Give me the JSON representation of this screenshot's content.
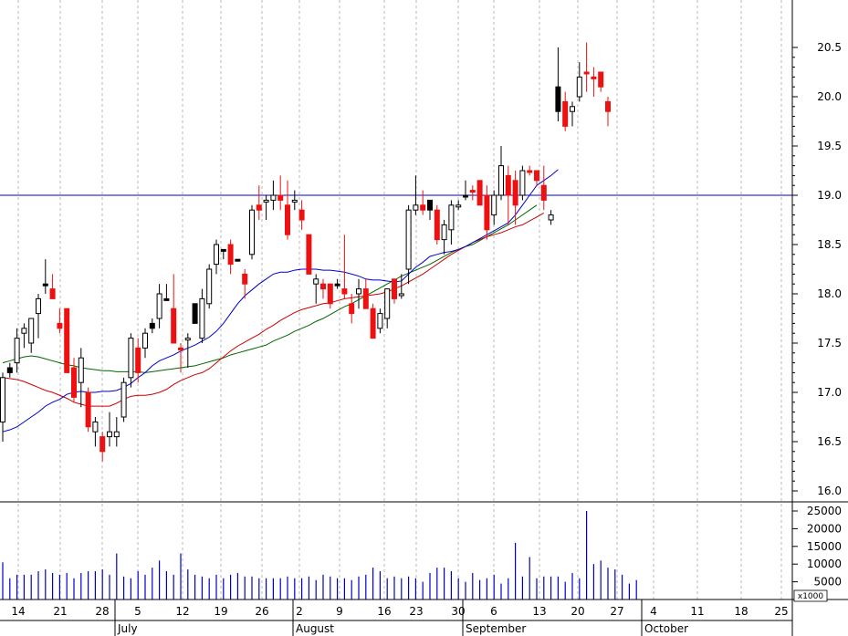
{
  "chart_data": {
    "type": "candlestick",
    "title": "",
    "price_axis": {
      "ylim": [
        15.9,
        21.0
      ],
      "ticks": [
        "16.0",
        "16.5",
        "17.0",
        "17.5",
        "18.0",
        "18.5",
        "19.0",
        "19.5",
        "20.0",
        "20.5"
      ]
    },
    "volume_axis": {
      "ylim": [
        0,
        27000
      ],
      "ticks": [
        "5000",
        "10000",
        "15000",
        "20000",
        "25000"
      ],
      "multiplier_label": "x1000"
    },
    "x_axis": {
      "day_labels": [
        "14",
        "21",
        "28",
        "5",
        "12",
        "19",
        "26",
        "2",
        "9",
        "16",
        "23",
        "30",
        "6",
        "13",
        "20",
        "27",
        "4",
        "11",
        "18",
        "25"
      ],
      "month_labels": [
        "July",
        "August",
        "September",
        "October"
      ],
      "grid": "dashed-vertical"
    },
    "horizontal_line": {
      "value": 19.0,
      "color": "#0000cc"
    },
    "colors": {
      "up": "#ffffff",
      "down": "#ee1111",
      "black_candle": "#000000",
      "ma_short": "#0000cc",
      "ma_mid": "#cc0000",
      "ma_long": "#006600",
      "volume": "#0000cc"
    },
    "candles": [
      {
        "o": 16.7,
        "h": 17.2,
        "l": 16.5,
        "c": 17.15,
        "color": "up"
      },
      {
        "o": 17.2,
        "h": 17.3,
        "l": 17.15,
        "c": 17.25,
        "color": "black"
      },
      {
        "o": 17.3,
        "h": 17.65,
        "l": 17.2,
        "c": 17.55,
        "color": "up"
      },
      {
        "o": 17.6,
        "h": 17.7,
        "l": 17.45,
        "c": 17.65,
        "color": "up"
      },
      {
        "o": 17.5,
        "h": 17.75,
        "l": 17.4,
        "c": 17.75,
        "color": "up"
      },
      {
        "o": 17.8,
        "h": 18.0,
        "l": 17.55,
        "c": 17.95,
        "color": "up"
      },
      {
        "o": 18.1,
        "h": 18.35,
        "l": 18.0,
        "c": 18.1,
        "color": "black"
      },
      {
        "o": 18.05,
        "h": 18.2,
        "l": 17.95,
        "c": 17.95,
        "color": "down"
      },
      {
        "o": 17.7,
        "h": 17.85,
        "l": 17.6,
        "c": 17.65,
        "color": "down"
      },
      {
        "o": 17.85,
        "h": 17.85,
        "l": 17.2,
        "c": 17.2,
        "color": "down"
      },
      {
        "o": 17.25,
        "h": 17.35,
        "l": 16.9,
        "c": 16.95,
        "color": "down"
      },
      {
        "o": 17.1,
        "h": 17.45,
        "l": 16.85,
        "c": 17.35,
        "color": "up"
      },
      {
        "o": 17.0,
        "h": 17.05,
        "l": 16.6,
        "c": 16.65,
        "color": "down"
      },
      {
        "o": 16.6,
        "h": 16.75,
        "l": 16.45,
        "c": 16.7,
        "color": "up"
      },
      {
        "o": 16.55,
        "h": 16.6,
        "l": 16.3,
        "c": 16.4,
        "color": "down"
      },
      {
        "o": 16.55,
        "h": 16.8,
        "l": 16.45,
        "c": 16.6,
        "color": "up"
      },
      {
        "o": 16.55,
        "h": 16.75,
        "l": 16.45,
        "c": 16.6,
        "color": "up"
      },
      {
        "o": 16.75,
        "h": 17.15,
        "l": 16.7,
        "c": 17.1,
        "color": "up"
      },
      {
        "o": 17.15,
        "h": 17.6,
        "l": 17.05,
        "c": 17.55,
        "color": "up"
      },
      {
        "o": 17.45,
        "h": 17.55,
        "l": 17.1,
        "c": 17.2,
        "color": "down"
      },
      {
        "o": 17.45,
        "h": 17.65,
        "l": 17.35,
        "c": 17.6,
        "color": "up"
      },
      {
        "o": 17.7,
        "h": 17.75,
        "l": 17.6,
        "c": 17.65,
        "color": "black"
      },
      {
        "o": 17.75,
        "h": 18.1,
        "l": 17.65,
        "c": 18.0,
        "color": "up"
      },
      {
        "o": 17.95,
        "h": 18.1,
        "l": 17.95,
        "c": 17.95,
        "color": "black"
      },
      {
        "o": 17.85,
        "h": 18.2,
        "l": 17.5,
        "c": 17.5,
        "color": "down"
      },
      {
        "o": 17.45,
        "h": 17.5,
        "l": 17.2,
        "c": 17.45,
        "color": "down"
      },
      {
        "o": 17.55,
        "h": 17.6,
        "l": 17.25,
        "c": 17.55,
        "color": "up"
      },
      {
        "o": 17.9,
        "h": 17.9,
        "l": 17.7,
        "c": 17.7,
        "color": "black"
      },
      {
        "o": 17.55,
        "h": 18.05,
        "l": 17.5,
        "c": 17.95,
        "color": "up"
      },
      {
        "o": 17.9,
        "h": 18.3,
        "l": 17.85,
        "c": 18.25,
        "color": "up"
      },
      {
        "o": 18.3,
        "h": 18.55,
        "l": 18.2,
        "c": 18.5,
        "color": "up"
      },
      {
        "o": 18.45,
        "h": 18.45,
        "l": 18.35,
        "c": 18.45,
        "color": "black"
      },
      {
        "o": 18.5,
        "h": 18.55,
        "l": 18.2,
        "c": 18.3,
        "color": "down"
      },
      {
        "o": 18.35,
        "h": 18.35,
        "l": 18.35,
        "c": 18.35,
        "color": "black"
      },
      {
        "o": 18.2,
        "h": 18.25,
        "l": 17.95,
        "c": 18.1,
        "color": "down"
      },
      {
        "o": 18.4,
        "h": 18.9,
        "l": 18.35,
        "c": 18.85,
        "color": "up"
      },
      {
        "o": 18.85,
        "h": 19.1,
        "l": 18.75,
        "c": 18.9,
        "color": "down"
      },
      {
        "o": 18.95,
        "h": 19.0,
        "l": 18.75,
        "c": 18.95,
        "color": "up"
      },
      {
        "o": 18.95,
        "h": 19.15,
        "l": 18.85,
        "c": 19.0,
        "color": "up"
      },
      {
        "o": 19.0,
        "h": 19.2,
        "l": 18.85,
        "c": 18.95,
        "color": "down"
      },
      {
        "o": 18.9,
        "h": 19.15,
        "l": 18.55,
        "c": 18.6,
        "color": "down"
      },
      {
        "o": 18.95,
        "h": 19.05,
        "l": 18.85,
        "c": 18.95,
        "color": "up"
      },
      {
        "o": 18.85,
        "h": 18.95,
        "l": 18.65,
        "c": 18.75,
        "color": "down"
      },
      {
        "o": 18.6,
        "h": 18.6,
        "l": 18.2,
        "c": 18.2,
        "color": "down"
      },
      {
        "o": 18.15,
        "h": 18.2,
        "l": 17.9,
        "c": 18.1,
        "color": "up"
      },
      {
        "o": 18.1,
        "h": 18.15,
        "l": 17.95,
        "c": 18.05,
        "color": "down"
      },
      {
        "o": 18.1,
        "h": 18.1,
        "l": 17.85,
        "c": 17.9,
        "color": "down"
      },
      {
        "o": 18.1,
        "h": 18.15,
        "l": 18.05,
        "c": 18.1,
        "color": "black"
      },
      {
        "o": 18.05,
        "h": 18.6,
        "l": 17.95,
        "c": 18.0,
        "color": "down"
      },
      {
        "o": 17.9,
        "h": 18.0,
        "l": 17.7,
        "c": 17.8,
        "color": "down"
      },
      {
        "o": 18.05,
        "h": 18.15,
        "l": 17.85,
        "c": 18.0,
        "color": "up"
      },
      {
        "o": 18.05,
        "h": 18.15,
        "l": 17.85,
        "c": 17.85,
        "color": "down"
      },
      {
        "o": 17.85,
        "h": 17.9,
        "l": 17.55,
        "c": 17.55,
        "color": "down"
      },
      {
        "o": 17.65,
        "h": 17.85,
        "l": 17.6,
        "c": 17.8,
        "color": "up"
      },
      {
        "o": 17.75,
        "h": 18.05,
        "l": 17.65,
        "c": 18.05,
        "color": "up"
      },
      {
        "o": 18.15,
        "h": 18.15,
        "l": 17.9,
        "c": 17.95,
        "color": "down"
      },
      {
        "o": 18.0,
        "h": 18.2,
        "l": 17.95,
        "c": 18.0,
        "color": "up"
      },
      {
        "o": 18.25,
        "h": 18.9,
        "l": 18.1,
        "c": 18.85,
        "color": "up"
      },
      {
        "o": 18.85,
        "h": 19.2,
        "l": 18.8,
        "c": 18.9,
        "color": "up"
      },
      {
        "o": 18.9,
        "h": 19.05,
        "l": 18.8,
        "c": 18.85,
        "color": "down"
      },
      {
        "o": 18.85,
        "h": 18.95,
        "l": 18.75,
        "c": 18.95,
        "color": "black"
      },
      {
        "o": 18.85,
        "h": 18.9,
        "l": 18.5,
        "c": 18.55,
        "color": "down"
      },
      {
        "o": 18.55,
        "h": 18.75,
        "l": 18.4,
        "c": 18.7,
        "color": "up"
      },
      {
        "o": 18.65,
        "h": 18.95,
        "l": 18.5,
        "c": 18.9,
        "color": "up"
      },
      {
        "o": 18.9,
        "h": 18.95,
        "l": 18.85,
        "c": 18.9,
        "color": "up"
      },
      {
        "o": 19.0,
        "h": 19.15,
        "l": 18.95,
        "c": 19.0,
        "color": "black"
      },
      {
        "o": 19.05,
        "h": 19.1,
        "l": 18.95,
        "c": 19.05,
        "color": "down"
      },
      {
        "o": 19.15,
        "h": 19.15,
        "l": 18.9,
        "c": 18.9,
        "color": "down"
      },
      {
        "o": 19.0,
        "h": 19.1,
        "l": 18.55,
        "c": 18.65,
        "color": "down"
      },
      {
        "o": 18.8,
        "h": 19.05,
        "l": 18.7,
        "c": 19.0,
        "color": "up"
      },
      {
        "o": 19.0,
        "h": 19.5,
        "l": 18.95,
        "c": 19.3,
        "color": "up"
      },
      {
        "o": 19.2,
        "h": 19.3,
        "l": 18.7,
        "c": 19.0,
        "color": "down"
      },
      {
        "o": 19.15,
        "h": 19.25,
        "l": 18.7,
        "c": 18.9,
        "color": "down"
      },
      {
        "o": 19.0,
        "h": 19.3,
        "l": 18.95,
        "c": 19.25,
        "color": "up"
      },
      {
        "o": 19.25,
        "h": 19.3,
        "l": 19.2,
        "c": 19.25,
        "color": "down"
      },
      {
        "o": 19.25,
        "h": 19.25,
        "l": 19.1,
        "c": 19.15,
        "color": "down"
      },
      {
        "o": 19.1,
        "h": 19.3,
        "l": 18.85,
        "c": 18.95,
        "color": "down"
      },
      {
        "o": 18.8,
        "h": 18.85,
        "l": 18.7,
        "c": 18.75,
        "color": "up"
      },
      {
        "o": 20.1,
        "h": 20.5,
        "l": 19.75,
        "c": 19.85,
        "color": "black"
      },
      {
        "o": 19.95,
        "h": 20.05,
        "l": 19.65,
        "c": 19.7,
        "color": "down"
      },
      {
        "o": 19.85,
        "h": 19.95,
        "l": 19.7,
        "c": 19.9,
        "color": "up"
      },
      {
        "o": 20.0,
        "h": 20.35,
        "l": 19.95,
        "c": 20.2,
        "color": "up"
      },
      {
        "o": 20.25,
        "h": 20.55,
        "l": 20.05,
        "c": 20.25,
        "color": "down"
      },
      {
        "o": 20.2,
        "h": 20.3,
        "l": 20.0,
        "c": 20.2,
        "color": "down"
      },
      {
        "o": 20.25,
        "h": 20.25,
        "l": 20.05,
        "c": 20.1,
        "color": "down"
      },
      {
        "o": 19.95,
        "h": 20.0,
        "l": 19.7,
        "c": 19.85,
        "color": "down"
      }
    ],
    "ma_short": [
      16.6,
      16.62,
      16.65,
      16.7,
      16.75,
      16.8,
      16.86,
      16.9,
      16.93,
      16.98,
      17.0,
      17.01,
      17.0,
      17.0,
      17.01,
      17.01,
      17.02,
      17.05,
      17.09,
      17.15,
      17.2,
      17.27,
      17.32,
      17.35,
      17.38,
      17.42,
      17.45,
      17.48,
      17.52,
      17.56,
      17.62,
      17.7,
      17.8,
      17.9,
      17.98,
      18.04,
      18.1,
      18.15,
      18.2,
      18.22,
      18.22,
      18.24,
      18.25,
      18.25,
      18.25,
      18.24,
      18.24,
      18.23,
      18.22,
      18.2,
      18.18,
      18.15,
      18.14,
      18.14,
      18.13,
      18.12,
      18.13,
      18.2,
      18.27,
      18.32,
      18.38,
      18.4,
      18.42,
      18.43,
      18.45,
      18.48,
      18.52,
      18.56,
      18.6,
      18.64,
      18.68,
      18.72,
      18.8,
      18.9,
      19.0,
      19.1,
      19.15,
      19.2,
      19.26
    ],
    "ma_mid": [
      17.15,
      17.14,
      17.13,
      17.11,
      17.08,
      17.05,
      17.02,
      17.0,
      16.97,
      16.94,
      16.9,
      16.88,
      16.86,
      16.86,
      16.86,
      16.86,
      16.89,
      16.93,
      16.96,
      16.97,
      16.97,
      16.98,
      17.0,
      17.03,
      17.08,
      17.12,
      17.15,
      17.18,
      17.2,
      17.24,
      17.3,
      17.36,
      17.42,
      17.47,
      17.51,
      17.55,
      17.59,
      17.64,
      17.68,
      17.73,
      17.77,
      17.81,
      17.84,
      17.86,
      17.88,
      17.9,
      17.91,
      17.93,
      17.95,
      17.96,
      17.97,
      17.98,
      17.99,
      18.0,
      18.02,
      18.05,
      18.08,
      18.12,
      18.16,
      18.2,
      18.25,
      18.3,
      18.35,
      18.4,
      18.44,
      18.48,
      18.52,
      18.55,
      18.58,
      18.6,
      18.62,
      18.65,
      18.68,
      18.7,
      18.74,
      18.78,
      18.82
    ],
    "ma_long": [
      17.3,
      17.32,
      17.34,
      17.36,
      17.37,
      17.36,
      17.34,
      17.32,
      17.3,
      17.28,
      17.27,
      17.25,
      17.24,
      17.23,
      17.22,
      17.22,
      17.21,
      17.21,
      17.21,
      17.21,
      17.2,
      17.21,
      17.22,
      17.23,
      17.24,
      17.25,
      17.26,
      17.27,
      17.29,
      17.31,
      17.33,
      17.35,
      17.38,
      17.4,
      17.42,
      17.44,
      17.46,
      17.48,
      17.52,
      17.55,
      17.58,
      17.62,
      17.65,
      17.68,
      17.72,
      17.75,
      17.79,
      17.83,
      17.87,
      17.9,
      17.94,
      17.98,
      18.02,
      18.06,
      18.1,
      18.14,
      18.18,
      18.21,
      18.24,
      18.27,
      18.3,
      18.34,
      18.38,
      18.42,
      18.45,
      18.48,
      18.5,
      18.54,
      18.58,
      18.62,
      18.66,
      18.7,
      18.75,
      18.8,
      18.85,
      18.9
    ],
    "volume": [
      10500,
      6000,
      7000,
      7000,
      7000,
      8000,
      8500,
      7500,
      7000,
      7500,
      6000,
      7500,
      8000,
      8000,
      8500,
      7000,
      13000,
      6500,
      6000,
      8000,
      7000,
      9000,
      11000,
      8000,
      7000,
      13000,
      8500,
      7000,
      6500,
      6000,
      7000,
      6000,
      7000,
      7500,
      6500,
      6500,
      6000,
      6000,
      6000,
      6000,
      6500,
      6000,
      6000,
      6500,
      5500,
      7000,
      6500,
      6000,
      6000,
      5500,
      6500,
      7000,
      9000,
      8000,
      6000,
      6500,
      6000,
      6500,
      6000,
      5000,
      7500,
      9000,
      9000,
      8000,
      6000,
      5000,
      7500,
      5500,
      6000,
      7000,
      4500,
      6000,
      16000,
      6500,
      12000,
      6000,
      6500,
      6500,
      6500,
      5000,
      7500,
      6000,
      25000,
      10000,
      11000,
      9000,
      8500,
      7000,
      4500,
      5500
    ]
  }
}
